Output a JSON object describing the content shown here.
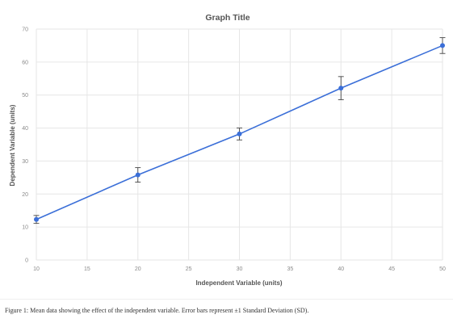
{
  "chart_data": {
    "type": "line",
    "title": "Graph Title",
    "xlabel": "Independent Variable (units)",
    "ylabel": "Dependent Variable (units)",
    "xlim": [
      10,
      50
    ],
    "ylim": [
      0,
      70
    ],
    "xticks": [
      10,
      15,
      20,
      25,
      30,
      35,
      40,
      45,
      50
    ],
    "yticks": [
      0,
      10,
      20,
      30,
      40,
      50,
      60,
      70
    ],
    "grid": true,
    "legend": "none",
    "series": [
      {
        "color": "#3b6fd8",
        "x": [
          10,
          20,
          30,
          40,
          50
        ],
        "y": [
          12.3,
          25.8,
          38.2,
          52.1,
          65.0
        ],
        "error_sd": [
          1.2,
          2.2,
          1.8,
          3.5,
          2.4
        ]
      }
    ]
  },
  "caption": "Figure 1: Mean data showing the effect of the independent variable. Error bars represent ±1 Standard Deviation (SD)."
}
